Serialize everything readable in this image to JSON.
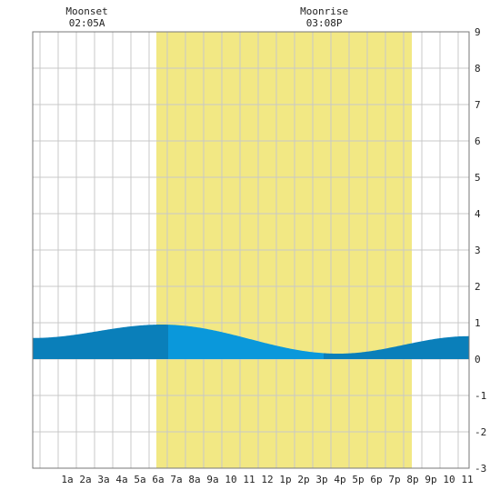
{
  "chart_data": {
    "type": "area",
    "title": "",
    "xlabel": "",
    "ylabel": "",
    "x_unit": "hour of day",
    "xlim": [
      -0.9,
      23.1
    ],
    "ylim": [
      -3,
      9
    ],
    "grid": true,
    "x_tick_labels": [
      {
        "x": 1,
        "label": "1a"
      },
      {
        "x": 2,
        "label": "2a"
      },
      {
        "x": 3,
        "label": "3a"
      },
      {
        "x": 4,
        "label": "4a"
      },
      {
        "x": 5,
        "label": "5a"
      },
      {
        "x": 6,
        "label": "6a"
      },
      {
        "x": 7,
        "label": "7a"
      },
      {
        "x": 8,
        "label": "8a"
      },
      {
        "x": 9,
        "label": "9a"
      },
      {
        "x": 10,
        "label": "10"
      },
      {
        "x": 11,
        "label": "11"
      },
      {
        "x": 12,
        "label": "12"
      },
      {
        "x": 13,
        "label": "1p"
      },
      {
        "x": 14,
        "label": "2p"
      },
      {
        "x": 15,
        "label": "3p"
      },
      {
        "x": 16,
        "label": "4p"
      },
      {
        "x": 17,
        "label": "5p"
      },
      {
        "x": 18,
        "label": "6p"
      },
      {
        "x": 19,
        "label": "7p"
      },
      {
        "x": 20,
        "label": "8p"
      },
      {
        "x": 21,
        "label": "9p"
      },
      {
        "x": 22,
        "label": "10"
      },
      {
        "x": 23,
        "label": "11"
      }
    ],
    "y_ticks": [
      -3,
      -2,
      -1,
      0,
      1,
      2,
      3,
      4,
      5,
      6,
      7,
      8,
      9
    ],
    "daylight": {
      "start": 5.9,
      "end": 19.95,
      "color": "#f2e884"
    },
    "tide_turns": [
      {
        "x": -0.9,
        "y": 0.58
      },
      {
        "x": 6.2,
        "y": 0.95
      },
      {
        "x": 15.9,
        "y": 0.15
      },
      {
        "x": 23.1,
        "y": 0.63
      }
    ],
    "tide_colors": {
      "outside_daylight": "#0a7fba",
      "inside_daylight": "#0a98db"
    },
    "annotations": [
      {
        "label": "Moonset",
        "time": "02:05A",
        "x": 2.08
      },
      {
        "label": "Moonrise",
        "time": "03:08P",
        "x": 15.13
      }
    ]
  }
}
